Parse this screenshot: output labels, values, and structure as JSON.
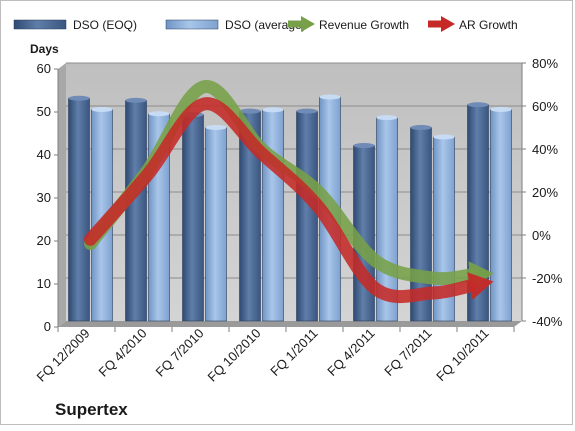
{
  "chart_data": {
    "type": "bar",
    "title": "",
    "company_label": "Supertex",
    "ylabel_left": "Days",
    "categories": [
      "FQ 12/2009",
      "FQ 4/2010",
      "FQ 7/2010",
      "FQ 10/2010",
      "FQ 1/2011",
      "FQ 4/2011",
      "FQ 7/2011",
      "FQ 10/2011"
    ],
    "left_axis": {
      "min": 0,
      "max": 60,
      "ticks": [
        "0",
        "10",
        "20",
        "30",
        "40",
        "50",
        "60"
      ]
    },
    "right_axis": {
      "min": -40,
      "max": 80,
      "ticks": [
        "-40%",
        "-20%",
        "0%",
        "20%",
        "40%",
        "60%",
        "80%"
      ]
    },
    "series": [
      {
        "name": "DSO (EOQ)",
        "kind": "bar",
        "axis": "left",
        "color": "#4f6d99",
        "values": [
          51.8,
          51.3,
          48,
          48.8,
          48.8,
          40.8,
          45,
          50.3
        ]
      },
      {
        "name": "DSO (average)",
        "kind": "bar",
        "axis": "left",
        "color": "#8fb1dc",
        "values": [
          49.2,
          48.2,
          45,
          49.1,
          52.1,
          47.3,
          42.8,
          49.2
        ]
      },
      {
        "name": "Revenue Growth",
        "kind": "line",
        "axis": "right",
        "color": "#77a048",
        "values": [
          -4,
          30,
          69,
          40,
          20,
          -12,
          -20,
          -18
        ]
      },
      {
        "name": "AR Growth",
        "kind": "line",
        "axis": "right",
        "color": "#c52a27",
        "values": [
          -2,
          28,
          61,
          38,
          13,
          -25,
          -27,
          -22
        ]
      }
    ],
    "grid": true,
    "legend_position": "top"
  }
}
